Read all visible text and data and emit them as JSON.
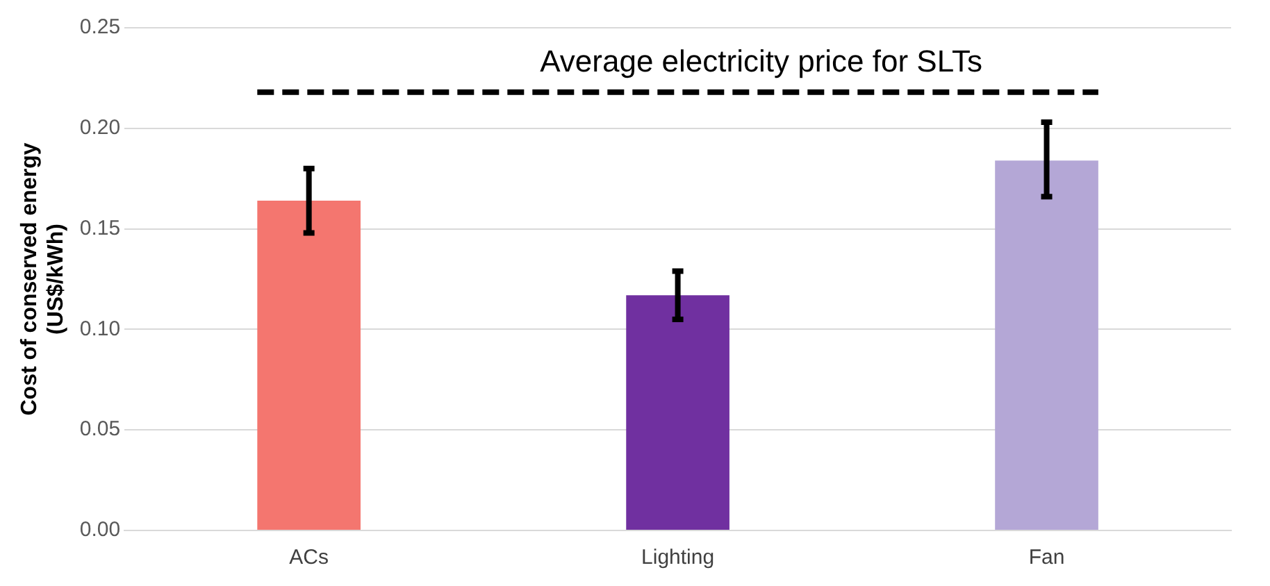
{
  "chart_data": {
    "type": "bar",
    "ylabel": "Cost of conserved energy\n(US$/kWh)",
    "categories": [
      "ACs",
      "Lighting",
      "Fan"
    ],
    "values": [
      0.164,
      0.117,
      0.184
    ],
    "errors": [
      [
        0.148,
        0.18
      ],
      [
        0.105,
        0.129
      ],
      [
        0.166,
        0.203
      ]
    ],
    "colors": [
      "#f4766f",
      "#7030a0",
      "#b4a7d6"
    ],
    "ylim": [
      0,
      0.25
    ],
    "yticks": [
      {
        "value": 0,
        "label": "0.00"
      },
      {
        "value": 0.05,
        "label": "0.05"
      },
      {
        "value": 0.1,
        "label": "0.10"
      },
      {
        "value": 0.15,
        "label": "0.15"
      },
      {
        "value": 0.2,
        "label": "0.20"
      },
      {
        "value": 0.25,
        "label": "0.25"
      }
    ],
    "grid": "y",
    "legend": false,
    "ref_lines": [
      {
        "axis": "y",
        "value": 0.218,
        "label": "Average electricity price for SLTs",
        "color": "#000000",
        "line_style": "dashed"
      }
    ]
  }
}
